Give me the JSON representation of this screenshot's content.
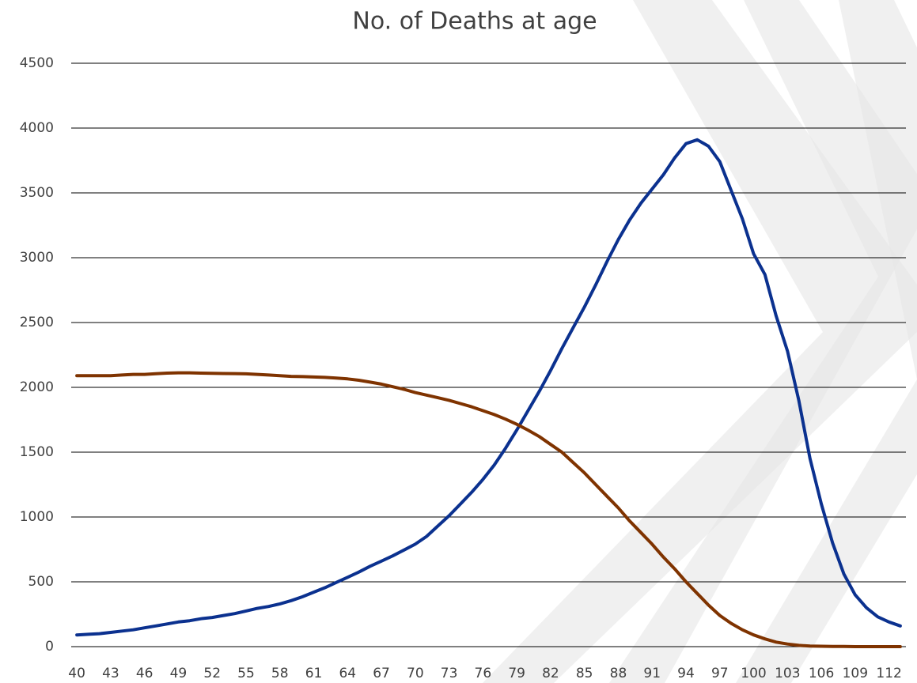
{
  "chart_data": {
    "type": "line",
    "title": "No. of Deaths at age",
    "categories": [
      40,
      null,
      null,
      43,
      null,
      null,
      46,
      null,
      null,
      49,
      null,
      null,
      52,
      null,
      null,
      55,
      null,
      null,
      58,
      null,
      null,
      61,
      null,
      null,
      64,
      null,
      null,
      67,
      null,
      null,
      70,
      null,
      null,
      73,
      null,
      null,
      76,
      null,
      null,
      79,
      null,
      null,
      82,
      null,
      null,
      85,
      null,
      null,
      88,
      null,
      null,
      91,
      null,
      null,
      94,
      null,
      null,
      97,
      null,
      null,
      100,
      null,
      null,
      103,
      null,
      null,
      106,
      null,
      null,
      109,
      null,
      null,
      112,
      null
    ],
    "series": [
      {
        "color": "#0b318f",
        "values": [
          90,
          95,
          100,
          110,
          120,
          130,
          145,
          160,
          175,
          190,
          200,
          215,
          225,
          240,
          255,
          275,
          295,
          310,
          330,
          355,
          385,
          420,
          455,
          495,
          535,
          575,
          620,
          660,
          700,
          745,
          790,
          850,
          930,
          1010,
          1100,
          1190,
          1290,
          1400,
          1530,
          1670,
          1820,
          1970,
          2130,
          2300,
          2460,
          2620,
          2790,
          2970,
          3140,
          3290,
          3420,
          3530,
          3640,
          3770,
          3880,
          3910,
          3860,
          3740,
          3520,
          3300,
          3030,
          2870,
          2550,
          2280,
          1900,
          1450,
          1100,
          800,
          560,
          400,
          300,
          230,
          190,
          160
        ]
      },
      {
        "color": "#7f3300",
        "values": [
          2090,
          2090,
          2090,
          2090,
          2095,
          2100,
          2100,
          2105,
          2110,
          2112,
          2112,
          2110,
          2108,
          2107,
          2106,
          2104,
          2100,
          2095,
          2090,
          2085,
          2083,
          2080,
          2077,
          2072,
          2065,
          2055,
          2040,
          2025,
          2005,
          1985,
          1960,
          1940,
          1920,
          1900,
          1875,
          1850,
          1820,
          1790,
          1755,
          1715,
          1670,
          1620,
          1560,
          1500,
          1420,
          1340,
          1250,
          1160,
          1070,
          970,
          880,
          790,
          690,
          600,
          500,
          410,
          320,
          240,
          180,
          130,
          90,
          60,
          35,
          20,
          10,
          5,
          3,
          2,
          1,
          0,
          0,
          0,
          0,
          0
        ]
      }
    ],
    "ylim": [
      0,
      4500
    ],
    "yticks": [
      0,
      500,
      1000,
      1500,
      2000,
      2500,
      3000,
      3500,
      4000,
      4500
    ],
    "grid": true
  }
}
